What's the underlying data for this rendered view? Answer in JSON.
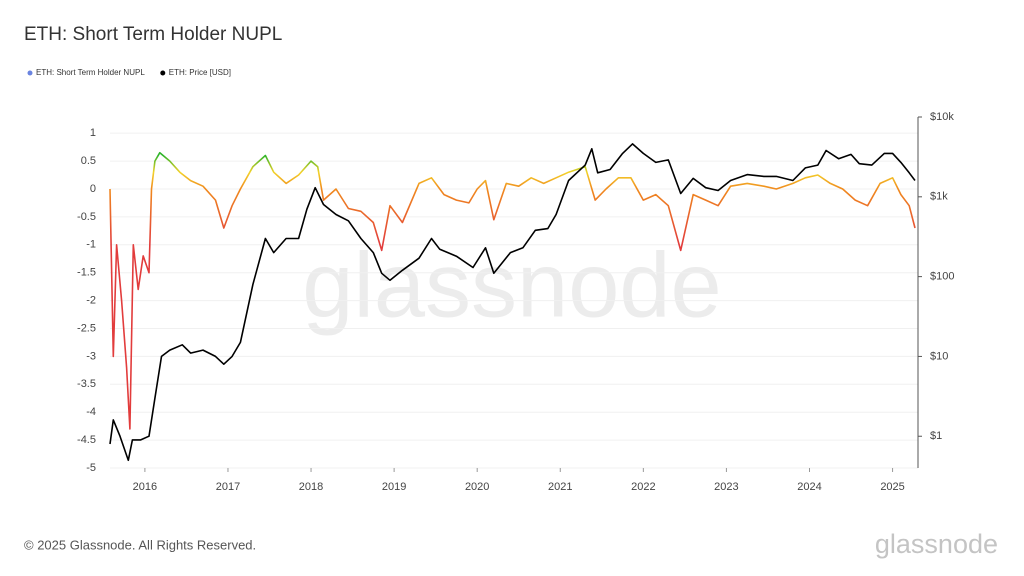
{
  "chart_data": {
    "type": "line",
    "title": "ETH: Short Term Holder NUPL",
    "xlim": [
      2015.58,
      2025.27
    ],
    "xticks": [
      2016,
      2017,
      2018,
      2019,
      2020,
      2021,
      2022,
      2023,
      2024,
      2025
    ],
    "ylim": [
      -5,
      1.29
    ],
    "yticks": [
      -5,
      -4.5,
      -4,
      -3.5,
      -3,
      -2.5,
      -2,
      -1.5,
      -1,
      -0.5,
      0,
      0.5,
      1
    ],
    "y2lim": [
      0.4,
      10000
    ],
    "y2log": true,
    "y2ticks": [
      {
        "value": 1,
        "label": "$1"
      },
      {
        "value": 10,
        "label": "$10"
      },
      {
        "value": 100,
        "label": "$100"
      },
      {
        "value": 1000,
        "label": "$1k"
      },
      {
        "value": 10000,
        "label": "$10k"
      }
    ],
    "grid": true,
    "series": [
      {
        "name": "ETH: Short Term Holder NUPL",
        "color": "#6a84e0",
        "color_scale": [
          {
            "value": -1,
            "color": "#e23c3c"
          },
          {
            "value": 0,
            "color": "#f08a1e"
          },
          {
            "value": 0.3,
            "color": "#f3d22a"
          },
          {
            "value": 0.6,
            "color": "#2fb52a"
          }
        ],
        "x": [
          2015.58,
          2015.62,
          2015.66,
          2015.72,
          2015.78,
          2015.82,
          2015.86,
          2015.92,
          2015.98,
          2016.05,
          2016.08,
          2016.12,
          2016.18,
          2016.3,
          2016.42,
          2016.55,
          2016.7,
          2016.85,
          2016.95,
          2017.05,
          2017.15,
          2017.3,
          2017.45,
          2017.55,
          2017.7,
          2017.85,
          2018.0,
          2018.08,
          2018.15,
          2018.3,
          2018.45,
          2018.6,
          2018.75,
          2018.85,
          2018.95,
          2019.1,
          2019.3,
          2019.45,
          2019.6,
          2019.75,
          2019.9,
          2020.0,
          2020.1,
          2020.2,
          2020.35,
          2020.5,
          2020.65,
          2020.8,
          2020.95,
          2021.1,
          2021.3,
          2021.42,
          2021.55,
          2021.7,
          2021.85,
          2022.0,
          2022.15,
          2022.3,
          2022.45,
          2022.6,
          2022.75,
          2022.9,
          2023.05,
          2023.25,
          2023.45,
          2023.6,
          2023.8,
          2023.95,
          2024.1,
          2024.25,
          2024.4,
          2024.55,
          2024.7,
          2024.85,
          2025.0,
          2025.1,
          2025.2,
          2025.27
        ],
        "values": [
          0,
          -3,
          -1.0,
          -2.0,
          -3.2,
          -4.3,
          -1.0,
          -1.8,
          -1.2,
          -1.5,
          0,
          0.5,
          0.65,
          0.5,
          0.3,
          0.15,
          0.05,
          -0.2,
          -0.7,
          -0.3,
          0,
          0.4,
          0.6,
          0.3,
          0.1,
          0.25,
          0.5,
          0.4,
          -0.2,
          0,
          -0.35,
          -0.4,
          -0.6,
          -1.1,
          -0.3,
          -0.6,
          0.1,
          0.2,
          -0.1,
          -0.2,
          -0.25,
          0,
          0.15,
          -0.55,
          0.1,
          0.05,
          0.2,
          0.1,
          0.2,
          0.3,
          0.4,
          -0.2,
          0,
          0.2,
          0.2,
          -0.2,
          -0.1,
          -0.3,
          -1.1,
          -0.1,
          -0.2,
          -0.3,
          0.05,
          0.1,
          0.05,
          0,
          0.1,
          0.2,
          0.25,
          0.1,
          0,
          -0.2,
          -0.3,
          0.1,
          0.2,
          -0.1,
          -0.3,
          -0.7
        ]
      },
      {
        "name": "ETH: Price [USD]",
        "color": "#000000",
        "axis": "y2",
        "x": [
          2015.58,
          2015.62,
          2015.7,
          2015.8,
          2015.85,
          2015.95,
          2016.05,
          2016.12,
          2016.2,
          2016.3,
          2016.45,
          2016.55,
          2016.7,
          2016.85,
          2016.95,
          2017.05,
          2017.15,
          2017.3,
          2017.45,
          2017.55,
          2017.7,
          2017.85,
          2017.95,
          2018.05,
          2018.15,
          2018.3,
          2018.45,
          2018.6,
          2018.75,
          2018.85,
          2018.95,
          2019.1,
          2019.3,
          2019.45,
          2019.55,
          2019.75,
          2019.95,
          2020.1,
          2020.2,
          2020.4,
          2020.55,
          2020.7,
          2020.85,
          2020.95,
          2021.1,
          2021.3,
          2021.38,
          2021.45,
          2021.6,
          2021.75,
          2021.87,
          2022.0,
          2022.15,
          2022.3,
          2022.45,
          2022.6,
          2022.75,
          2022.9,
          2023.05,
          2023.25,
          2023.45,
          2023.6,
          2023.8,
          2023.95,
          2024.1,
          2024.2,
          2024.35,
          2024.5,
          2024.6,
          2024.75,
          2024.9,
          2025.0,
          2025.1,
          2025.2,
          2025.27
        ],
        "values": [
          0.8,
          1.6,
          1.0,
          0.5,
          0.9,
          0.9,
          1.0,
          3,
          10,
          12,
          14,
          11,
          12,
          10,
          8,
          10,
          15,
          80,
          300,
          200,
          300,
          300,
          700,
          1300,
          800,
          600,
          500,
          300,
          200,
          110,
          90,
          120,
          170,
          300,
          220,
          180,
          130,
          230,
          110,
          200,
          230,
          380,
          400,
          600,
          1600,
          2500,
          4000,
          2000,
          2200,
          3500,
          4600,
          3500,
          2700,
          2900,
          1100,
          1700,
          1300,
          1200,
          1600,
          1900,
          1800,
          1800,
          1600,
          2300,
          2500,
          3800,
          3000,
          3400,
          2600,
          2500,
          3500,
          3500,
          2700,
          2000,
          1600
        ]
      }
    ]
  },
  "watermark": "glassnode",
  "footer": {
    "copyright": "© 2025 Glassnode. All Rights Reserved.",
    "logo": "glassnode"
  }
}
